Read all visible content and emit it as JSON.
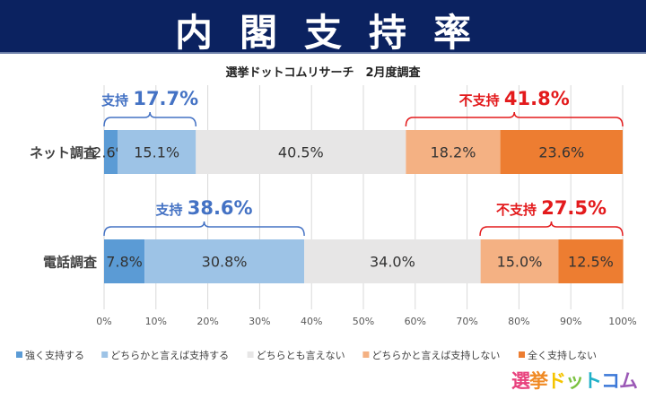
{
  "header": {
    "title": "内閣支持率"
  },
  "chart_data": {
    "type": "bar",
    "stacked": true,
    "orientation": "horizontal",
    "subtitle": "選挙ドットコムリサーチ　2月度調査",
    "categories": [
      "ネット調査",
      "電話調査"
    ],
    "series": [
      {
        "name": "強く支持する",
        "color": "#5b9bd5",
        "values": [
          2.6,
          7.8
        ]
      },
      {
        "name": "どちらかと言えば支持する",
        "color": "#9dc3e6",
        "values": [
          15.1,
          30.8
        ]
      },
      {
        "name": "どちらとも言えない",
        "color": "#e7e6e6",
        "values": [
          40.5,
          34.0
        ]
      },
      {
        "name": "どちらかと言えば支持しない",
        "color": "#f4b183",
        "values": [
          18.2,
          15.0
        ]
      },
      {
        "name": "全く支持しない",
        "color": "#ed7d31",
        "values": [
          23.6,
          12.5
        ]
      }
    ],
    "data_labels": [
      [
        "2.6%",
        "15.1%",
        "40.5%",
        "18.2%",
        "23.6%"
      ],
      [
        "7.8%",
        "30.8%",
        "34.0%",
        "15.0%",
        "12.5%"
      ]
    ],
    "annotations": [
      {
        "row": 0,
        "kind": "support",
        "prefix": "支持",
        "value": "17.7%",
        "color": "#4472c4"
      },
      {
        "row": 0,
        "kind": "oppose",
        "prefix": "不支持",
        "value": "41.8%",
        "color": "#e31a1c"
      },
      {
        "row": 1,
        "kind": "support",
        "prefix": "支持",
        "value": "38.6%",
        "color": "#4472c4"
      },
      {
        "row": 1,
        "kind": "oppose",
        "prefix": "不支持",
        "value": "27.5%",
        "color": "#e31a1c"
      }
    ],
    "xlim": [
      0,
      100
    ],
    "xticks": [
      "0%",
      "10%",
      "20%",
      "30%",
      "40%",
      "50%",
      "60%",
      "70%",
      "80%",
      "90%",
      "100%"
    ],
    "grid": true,
    "legend": "bottom"
  },
  "logo": {
    "text": "選挙ドットコム"
  }
}
